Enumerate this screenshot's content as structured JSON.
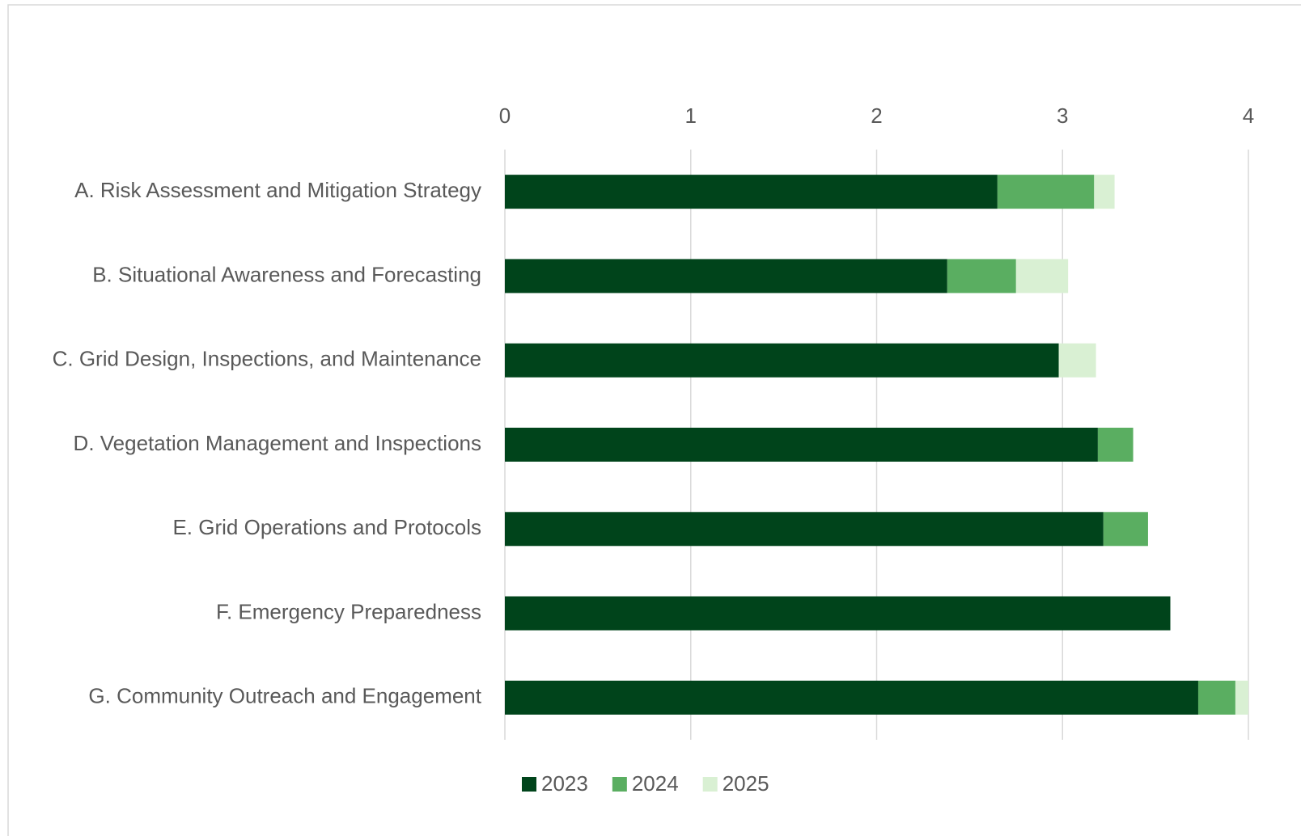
{
  "chart_data": {
    "type": "stacked_barh",
    "categories": [
      "A. Risk Assessment and Mitigation Strategy",
      "B. Situational Awareness and Forecasting",
      "C. Grid Design, Inspections, and Maintenance",
      "D. Vegetation Management and Inspections",
      "E. Grid Operations and Protocols",
      "F. Emergency Preparedness",
      "G. Community Outreach and Engagement"
    ],
    "series": [
      {
        "name": "2023",
        "color": "#00441b",
        "values": [
          2.65,
          2.38,
          2.98,
          3.19,
          3.22,
          3.58,
          3.73
        ]
      },
      {
        "name": "2024",
        "color": "#5aae61",
        "values": [
          0.52,
          0.37,
          0,
          0.19,
          0.24,
          0,
          0.2
        ]
      },
      {
        "name": "2025",
        "color": "#d9f0d3",
        "values": [
          0.11,
          0.28,
          0.2,
          0,
          0,
          0,
          0.07
        ]
      }
    ],
    "xlim": [
      0,
      4
    ],
    "xticks": [
      0,
      1,
      2,
      3,
      4
    ],
    "grid": true,
    "legend": "bottom"
  }
}
